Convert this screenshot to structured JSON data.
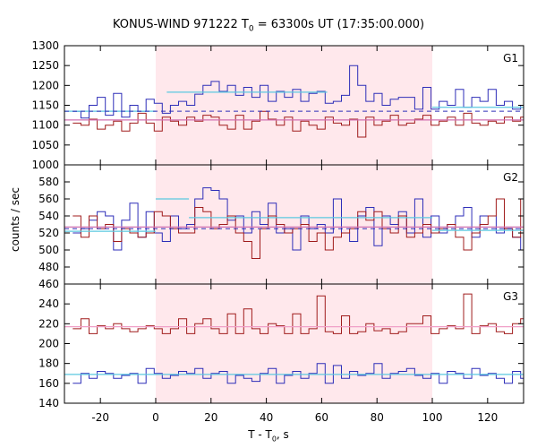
{
  "chart_data": {
    "type": "line",
    "title": {
      "prefix": "KONUS-WIND 971222 T",
      "sub": "0",
      "suffix": " = 63300s UT (17:35:00.000)"
    },
    "xlabel": {
      "prefix": "T - T",
      "sub": "0",
      "suffix": ", s"
    },
    "ylabel": "counts / sec",
    "xlim": [
      -33,
      133
    ],
    "xticks": [
      -20,
      0,
      20,
      40,
      60,
      80,
      100,
      120
    ],
    "shaded_interval": [
      0,
      100
    ],
    "shade_color": "#ffe8ec",
    "bin_width": 2.944,
    "bins_start": -30,
    "panels": [
      {
        "label": "G1",
        "ylim": [
          1000,
          1300
        ],
        "yticks": [
          1000,
          1050,
          1100,
          1150,
          1200,
          1250,
          1300
        ],
        "series": [
          {
            "color": "#2e2eb8",
            "values": [
              1135,
              1118,
              1150,
              1170,
              1125,
              1180,
              1120,
              1150,
              1135,
              1165,
              1155,
              1130,
              1150,
              1160,
              1150,
              1178,
              1200,
              1210,
              1185,
              1200,
              1175,
              1195,
              1170,
              1200,
              1160,
              1185,
              1170,
              1190,
              1160,
              1180,
              1185,
              1155,
              1160,
              1175,
              1250,
              1200,
              1160,
              1180,
              1150,
              1165,
              1170,
              1170,
              1140,
              1195,
              1140,
              1160,
              1150,
              1190,
              1145,
              1170,
              1160,
              1190,
              1150,
              1160,
              1140,
              1150,
              1120,
              1140,
              1150,
              1130
            ]
          },
          {
            "color": "#a01c1c",
            "values": [
              1105,
              1100,
              1115,
              1090,
              1100,
              1110,
              1085,
              1105,
              1130,
              1105,
              1085,
              1120,
              1110,
              1100,
              1120,
              1110,
              1125,
              1120,
              1100,
              1090,
              1125,
              1090,
              1110,
              1135,
              1115,
              1100,
              1120,
              1085,
              1110,
              1100,
              1090,
              1120,
              1105,
              1100,
              1115,
              1070,
              1120,
              1100,
              1110,
              1125,
              1100,
              1105,
              1115,
              1125,
              1100,
              1110,
              1120,
              1100,
              1130,
              1105,
              1100,
              1110,
              1105,
              1120,
              1110,
              1120,
              1110,
              1110,
              1120,
              1105
            ]
          }
        ],
        "fits": [
          {
            "color": "#5bc8e0",
            "segments": [
              {
                "x0": -33,
                "x1": 0,
                "y": 1135
              },
              {
                "x0": 4,
                "x1": 62,
                "y": 1183
              },
              {
                "x0": 100,
                "x1": 133,
                "y": 1145
              }
            ]
          },
          {
            "color": "#d070b0",
            "segments": [
              {
                "x0": -33,
                "x1": 133,
                "y": 1113
              }
            ]
          }
        ],
        "background": {
          "color": "#2e2eb8",
          "y": 1135
        }
      },
      {
        "label": "G2",
        "ylim": [
          460,
          600
        ],
        "yticks": [
          460,
          480,
          500,
          520,
          540,
          560,
          580
        ],
        "series": [
          {
            "color": "#2e2eb8",
            "values": [
              520,
              525,
              535,
              545,
              540,
              500,
              535,
              555,
              515,
              545,
              520,
              510,
              540,
              525,
              530,
              560,
              573,
              570,
              560,
              535,
              540,
              520,
              545,
              530,
              555,
              520,
              525,
              500,
              540,
              525,
              530,
              520,
              560,
              520,
              510,
              540,
              550,
              505,
              540,
              530,
              545,
              520,
              560,
              515,
              540,
              520,
              530,
              540,
              550,
              515,
              540,
              540,
              520,
              525,
              515,
              500,
              520,
              525,
              530,
              540
            ]
          },
          {
            "color": "#a01c1c",
            "values": [
              540,
              515,
              540,
              525,
              530,
              510,
              525,
              520,
              515,
              520,
              545,
              540,
              525,
              520,
              520,
              550,
              545,
              525,
              530,
              540,
              520,
              510,
              490,
              525,
              540,
              530,
              520,
              525,
              530,
              510,
              520,
              500,
              515,
              520,
              525,
              545,
              535,
              545,
              525,
              520,
              540,
              515,
              520,
              530,
              520,
              525,
              530,
              515,
              500,
              520,
              530,
              540,
              560,
              525,
              515,
              560,
              540,
              500,
              520,
              560
            ]
          }
        ],
        "fits": [
          {
            "color": "#5bc8e0",
            "segments": [
              {
                "x0": -33,
                "x1": 0,
                "y": 522
              },
              {
                "x0": 0,
                "x1": 12,
                "y": 560
              },
              {
                "x0": 12,
                "x1": 100,
                "y": 538
              },
              {
                "x0": 100,
                "x1": 133,
                "y": 523
              }
            ]
          },
          {
            "color": "#d070b0",
            "segments": [
              {
                "x0": -33,
                "x1": 133,
                "y": 527
              }
            ]
          }
        ],
        "background": {
          "color": "#2e2eb8",
          "y": 525
        }
      },
      {
        "label": "G3",
        "ylim": [
          140,
          260
        ],
        "yticks": [
          140,
          160,
          180,
          200,
          220,
          240
        ],
        "series": [
          {
            "color": "#a01c1c",
            "values": [
              215,
              225,
              210,
              218,
              215,
              220,
              215,
              212,
              215,
              218,
              215,
              210,
              215,
              225,
              210,
              220,
              225,
              215,
              210,
              230,
              210,
              235,
              215,
              210,
              220,
              218,
              210,
              230,
              210,
              215,
              248,
              212,
              210,
              228,
              210,
              212,
              220,
              213,
              215,
              210,
              212,
              220,
              220,
              228,
              210,
              215,
              218,
              215,
              250,
              210,
              218,
              220,
              212,
              210,
              220,
              225,
              210,
              213,
              215,
              220
            ]
          },
          {
            "color": "#2e2eb8",
            "values": [
              160,
              170,
              165,
              172,
              170,
              165,
              168,
              170,
              160,
              175,
              170,
              165,
              168,
              172,
              170,
              175,
              165,
              170,
              172,
              160,
              168,
              165,
              162,
              170,
              175,
              160,
              168,
              172,
              165,
              170,
              180,
              160,
              178,
              165,
              172,
              168,
              170,
              180,
              165,
              170,
              172,
              175,
              168,
              165,
              170,
              160,
              172,
              170,
              165,
              175,
              168,
              170,
              165,
              160,
              172,
              165,
              170,
              170,
              160,
              172
            ]
          }
        ],
        "fits": [
          {
            "color": "#f0a0c8",
            "segments": [
              {
                "x0": -33,
                "x1": 133,
                "y": 217
              }
            ]
          },
          {
            "color": "#5bc8e0",
            "segments": [
              {
                "x0": -33,
                "x1": 133,
                "y": 169
              }
            ]
          }
        ]
      }
    ]
  }
}
